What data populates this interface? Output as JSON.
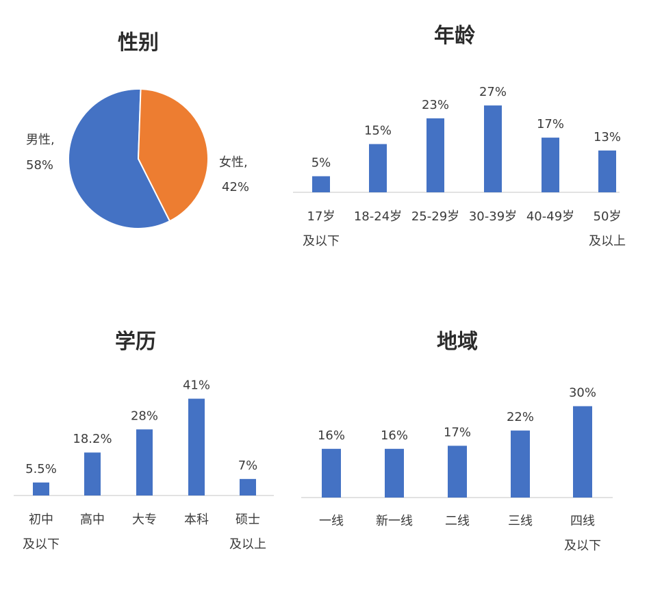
{
  "chart_data": [
    {
      "type": "pie",
      "title": "性别",
      "categories": [
        "男性",
        "女性"
      ],
      "values": [
        58,
        42
      ],
      "value_labels": [
        "58%",
        "42%"
      ],
      "colors": [
        "#4472c4",
        "#ed7d31"
      ],
      "labels": [
        {
          "line1": "男性,",
          "line2": "58%"
        },
        {
          "line1": "女性,",
          "line2": "42%"
        }
      ]
    },
    {
      "type": "bar",
      "title": "年龄",
      "categories": [
        [
          "17岁",
          "及以下"
        ],
        [
          "18-24岁"
        ],
        [
          "25-29岁"
        ],
        [
          "30-39岁"
        ],
        [
          "40-49岁"
        ],
        [
          "50岁",
          "及以上"
        ]
      ],
      "values": [
        5,
        15,
        23,
        27,
        17,
        13
      ],
      "value_labels": [
        "5%",
        "15%",
        "23%",
        "27%",
        "17%",
        "13%"
      ],
      "color": "#4472c4"
    },
    {
      "type": "bar",
      "title": "学历",
      "categories": [
        [
          "初中",
          "及以下"
        ],
        [
          "高中"
        ],
        [
          "大专"
        ],
        [
          "本科"
        ],
        [
          "硕士",
          "及以上"
        ]
      ],
      "values": [
        5.5,
        18.2,
        28,
        41,
        7
      ],
      "value_labels": [
        "5.5%",
        "18.2%",
        "28%",
        "41%",
        "7%"
      ],
      "color": "#4472c4"
    },
    {
      "type": "bar",
      "title": "地域",
      "categories": [
        [
          "一线"
        ],
        [
          "新一线"
        ],
        [
          "二线"
        ],
        [
          "三线"
        ],
        [
          "四线",
          "及以下"
        ]
      ],
      "values": [
        16,
        16,
        17,
        22,
        30
      ],
      "value_labels": [
        "16%",
        "16%",
        "17%",
        "22%",
        "30%"
      ],
      "color": "#4472c4"
    }
  ]
}
